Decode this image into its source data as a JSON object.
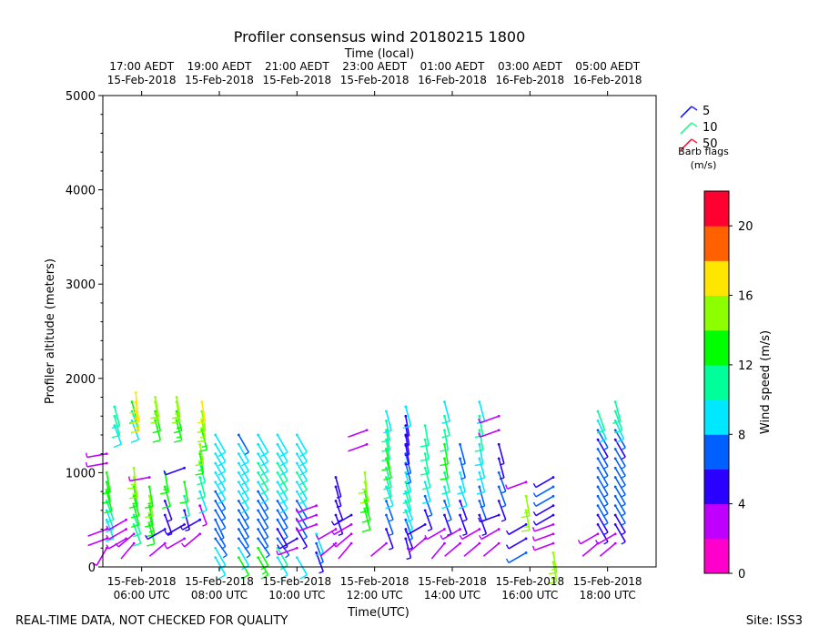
{
  "chart_data": {
    "type": "wind_barb_profile",
    "title": "Profiler consensus wind 20180215 1800",
    "top_axis_label": "Time (local)",
    "xlabel": "Time(UTC)",
    "ylabel": "Profiler altitude (meters)",
    "ylim": [
      0,
      5000
    ],
    "xlim_hours_utc": [
      5.0,
      19.25
    ],
    "y_ticks": [
      "0",
      "1000",
      "2000",
      "3000",
      "4000",
      "5000"
    ],
    "y_tick_values": [
      0,
      1000,
      2000,
      3000,
      4000,
      5000
    ],
    "bottom_ticks": [
      {
        "hour": 6,
        "line1": "15-Feb-2018",
        "line2": "06:00 UTC"
      },
      {
        "hour": 8,
        "line1": "15-Feb-2018",
        "line2": "08:00 UTC"
      },
      {
        "hour": 10,
        "line1": "15-Feb-2018",
        "line2": "10:00 UTC"
      },
      {
        "hour": 12,
        "line1": "15-Feb-2018",
        "line2": "12:00 UTC"
      },
      {
        "hour": 14,
        "line1": "15-Feb-2018",
        "line2": "14:00 UTC"
      },
      {
        "hour": 16,
        "line1": "15-Feb-2018",
        "line2": "16:00 UTC"
      },
      {
        "hour": 18,
        "line1": "15-Feb-2018",
        "line2": "18:00 UTC"
      }
    ],
    "top_ticks": [
      {
        "hour": 6,
        "line1": "17:00 AEDT",
        "line2": "15-Feb-2018"
      },
      {
        "hour": 8,
        "line1": "19:00 AEDT",
        "line2": "15-Feb-2018"
      },
      {
        "hour": 10,
        "line1": "21:00 AEDT",
        "line2": "15-Feb-2018"
      },
      {
        "hour": 12,
        "line1": "23:00 AEDT",
        "line2": "15-Feb-2018"
      },
      {
        "hour": 14,
        "line1": "01:00 AEDT",
        "line2": "16-Feb-2018"
      },
      {
        "hour": 16,
        "line1": "03:00 AEDT",
        "line2": "16-Feb-2018"
      },
      {
        "hour": 18,
        "line1": "05:00 AEDT",
        "line2": "16-Feb-2018"
      }
    ],
    "legend": {
      "title": "Barb flags",
      "units": "(m/s)",
      "entries": [
        {
          "label": "5",
          "color": "#1a1aff"
        },
        {
          "label": "10",
          "color": "#1aff8c"
        },
        {
          "label": "50",
          "color": "#ff1a3c"
        }
      ]
    },
    "colorbar": {
      "label": "Wind speed (m/s)",
      "min": 0,
      "max": 22,
      "ticks": [
        "0",
        "4",
        "8",
        "12",
        "16",
        "20"
      ],
      "tick_values": [
        0,
        4,
        8,
        12,
        16,
        20
      ],
      "colors": [
        "#ff00cc",
        "#c000ff",
        "#2a00ff",
        "#0060ff",
        "#00e8ff",
        "#00ff9a",
        "#00ff00",
        "#8cff00",
        "#ffe600",
        "#ff6000",
        "#ff0030"
      ]
    },
    "profiles": [
      {
        "t": 5.1,
        "alts": [
          200,
          300,
          400,
          500,
          600,
          700,
          800,
          900,
          1000,
          1100,
          1200
        ],
        "spd": [
          3,
          2,
          2,
          9,
          9,
          11,
          12,
          12,
          13,
          3,
          3
        ],
        "dir": [
          210,
          250,
          250,
          160,
          160,
          160,
          165,
          170,
          170,
          260,
          260
        ]
      },
      {
        "t": 5.3,
        "alts": [
          1500,
          1600,
          1700
        ],
        "spd": [
          9,
          10,
          10
        ],
        "dir": [
          160,
          165,
          165
        ]
      },
      {
        "t": 5.6,
        "alts": [
          300,
          400,
          500
        ],
        "spd": [
          3,
          3,
          3
        ],
        "dir": [
          240,
          240,
          240
        ]
      },
      {
        "t": 5.75,
        "alts": [
          1550,
          1650,
          1750
        ],
        "spd": [
          9,
          10,
          12
        ],
        "dir": [
          160,
          160,
          165
        ]
      },
      {
        "t": 5.8,
        "alts": [
          250,
          350,
          450,
          550,
          650,
          750,
          850,
          950,
          1050
        ],
        "spd": [
          2,
          3,
          10,
          11,
          12,
          12,
          13,
          14,
          14
        ],
        "dir": [
          220,
          230,
          160,
          160,
          165,
          165,
          170,
          170,
          175
        ]
      },
      {
        "t": 5.85,
        "alts": [
          1650,
          1750,
          1850
        ],
        "spd": [
          16,
          16,
          17
        ],
        "dir": [
          170,
          170,
          175
        ]
      },
      {
        "t": 6.2,
        "alts": [
          450,
          550,
          650,
          750,
          850,
          950
        ],
        "spd": [
          12,
          13,
          13,
          14,
          13,
          3
        ],
        "dir": [
          165,
          165,
          170,
          170,
          170,
          260
        ]
      },
      {
        "t": 6.35,
        "alts": [
          1550,
          1650,
          1750,
          1800
        ],
        "spd": [
          12,
          12,
          14,
          15
        ],
        "dir": [
          165,
          165,
          170,
          170
        ]
      },
      {
        "t": 6.6,
        "alts": [
          250,
          400,
          550,
          700,
          850,
          1000
        ],
        "spd": [
          2,
          4,
          5,
          4,
          12,
          13
        ],
        "dir": [
          230,
          240,
          160,
          160,
          165,
          170
        ]
      },
      {
        "t": 6.9,
        "alts": [
          1550,
          1650,
          1750,
          1800
        ],
        "spd": [
          13,
          13,
          15,
          15
        ],
        "dir": [
          165,
          165,
          170,
          170
        ]
      },
      {
        "t": 7.1,
        "alts": [
          300,
          450,
          600,
          750,
          900,
          1050
        ],
        "spd": [
          3,
          4,
          5,
          10,
          12,
          5
        ],
        "dir": [
          240,
          240,
          165,
          165,
          170,
          250
        ]
      },
      {
        "t": 7.5,
        "alts": [
          350,
          500,
          650,
          800,
          950,
          1100,
          1200,
          1300
        ],
        "spd": [
          3,
          4,
          3,
          9,
          10,
          11,
          13,
          14
        ],
        "dir": [
          230,
          240,
          160,
          160,
          165,
          165,
          170,
          170
        ]
      },
      {
        "t": 7.55,
        "alts": [
          1450,
          1550,
          1650,
          1750
        ],
        "spd": [
          13,
          14,
          15,
          16
        ],
        "dir": [
          165,
          170,
          170,
          170
        ]
      },
      {
        "t": 7.9,
        "alts": [
          100,
          200,
          300,
          400,
          500,
          600,
          700,
          800,
          900,
          1000,
          1100,
          1200,
          1300,
          1400
        ],
        "spd": [
          9,
          8,
          7,
          7,
          6,
          6,
          6,
          7,
          8,
          9,
          9,
          9,
          9,
          8
        ],
        "dir": [
          150,
          150,
          145,
          150,
          155,
          150,
          150,
          150,
          150,
          150,
          150,
          150,
          150,
          150
        ]
      },
      {
        "t": 8.5,
        "alts": [
          100,
          200,
          300,
          400,
          500,
          600,
          700,
          800,
          900,
          1000,
          1100,
          1200,
          1300,
          1400
        ],
        "spd": [
          12,
          8,
          7,
          7,
          6,
          7,
          7,
          8,
          9,
          9,
          9,
          9,
          8,
          7
        ],
        "dir": [
          150,
          150,
          145,
          150,
          150,
          150,
          150,
          150,
          150,
          150,
          150,
          150,
          150,
          150
        ]
      },
      {
        "t": 9.0,
        "alts": [
          100,
          200,
          300,
          400,
          500,
          600,
          700,
          800,
          900,
          1000,
          1100,
          1200,
          1300,
          1400
        ],
        "spd": [
          13,
          12,
          7,
          7,
          6,
          6,
          6,
          7,
          9,
          11,
          11,
          9,
          9,
          9
        ],
        "dir": [
          150,
          150,
          145,
          150,
          150,
          150,
          150,
          150,
          150,
          150,
          150,
          150,
          150,
          150
        ]
      },
      {
        "t": 9.5,
        "alts": [
          100,
          200,
          300,
          400,
          500,
          600,
          700,
          800,
          900,
          1000,
          1100,
          1200,
          1300,
          1400
        ],
        "spd": [
          9,
          10,
          6,
          5,
          6,
          6,
          7,
          8,
          9,
          10,
          11,
          9,
          9,
          9
        ],
        "dir": [
          150,
          150,
          145,
          150,
          150,
          150,
          150,
          150,
          150,
          150,
          150,
          150,
          150,
          150
        ]
      },
      {
        "t": 10.0,
        "alts": [
          100,
          200,
          300,
          400,
          500,
          600,
          700,
          800,
          900,
          1000,
          1100,
          1200,
          1300,
          1400
        ],
        "spd": [
          9,
          3,
          4,
          5,
          6,
          7,
          7,
          8,
          9,
          10,
          9,
          9,
          9,
          9
        ],
        "dir": [
          150,
          250,
          240,
          150,
          150,
          150,
          150,
          150,
          150,
          150,
          150,
          150,
          150,
          150
        ]
      },
      {
        "t": 10.5,
        "alts": [
          150,
          250,
          350,
          450,
          550,
          650
        ],
        "spd": [
          5,
          7,
          9,
          3,
          3,
          3
        ],
        "dir": [
          160,
          160,
          160,
          250,
          250,
          250
        ]
      },
      {
        "t": 11.0,
        "alts": [
          250,
          400,
          550,
          700,
          850,
          950
        ],
        "spd": [
          2,
          3,
          4,
          5,
          5,
          5
        ],
        "dir": [
          230,
          240,
          160,
          160,
          165,
          165
        ]
      },
      {
        "t": 11.4,
        "alts": [
          250,
          350,
          450,
          550
        ],
        "spd": [
          2,
          3,
          3,
          4
        ],
        "dir": [
          220,
          230,
          240,
          240
        ]
      },
      {
        "t": 11.75,
        "alts": [
          600,
          700,
          800,
          900,
          1000
        ],
        "spd": [
          12,
          12,
          13,
          14,
          14
        ],
        "dir": [
          165,
          165,
          170,
          170,
          175
        ]
      },
      {
        "t": 11.8,
        "alts": [
          1300,
          1450
        ],
        "spd": [
          2,
          2
        ],
        "dir": [
          250,
          250
        ]
      },
      {
        "t": 12.3,
        "alts": [
          250,
          400,
          550,
          700,
          850,
          950,
          1050,
          1150,
          1250,
          1350,
          1450,
          1550,
          1650
        ],
        "spd": [
          2,
          5,
          6,
          7,
          8,
          10,
          11,
          12,
          12,
          11,
          11,
          10,
          9
        ],
        "dir": [
          230,
          160,
          160,
          160,
          160,
          165,
          165,
          165,
          170,
          170,
          170,
          170,
          165
        ]
      },
      {
        "t": 12.8,
        "alts": [
          300,
          400,
          500,
          600,
          700,
          800,
          900,
          1000,
          1100,
          1200,
          1300,
          1400,
          1500,
          1600,
          1700
        ],
        "spd": [
          4,
          5,
          7,
          8,
          9,
          10,
          10,
          9,
          6,
          6,
          5,
          5,
          4,
          4,
          9
        ],
        "dir": [
          165,
          160,
          160,
          160,
          160,
          165,
          165,
          165,
          165,
          165,
          170,
          170,
          170,
          170,
          165
        ]
      },
      {
        "t": 13.3,
        "alts": [
          300,
          450,
          600,
          750,
          900,
          1050,
          1200,
          1350,
          1500
        ],
        "spd": [
          3,
          4,
          5,
          7,
          9,
          10,
          11,
          11,
          10
        ],
        "dir": [
          230,
          240,
          160,
          160,
          165,
          165,
          170,
          170,
          170
        ]
      },
      {
        "t": 13.8,
        "alts": [
          250,
          400,
          550,
          700,
          850,
          1000,
          1150,
          1300,
          1450,
          1600,
          1750
        ],
        "spd": [
          2,
          3,
          5,
          6,
          9,
          11,
          12,
          12,
          11,
          10,
          9
        ],
        "dir": [
          220,
          240,
          160,
          160,
          165,
          165,
          170,
          170,
          170,
          165,
          165
        ]
      },
      {
        "t": 14.2,
        "alts": [
          250,
          400,
          550,
          700,
          850,
          1000,
          1150,
          1300
        ],
        "spd": [
          2,
          3,
          4,
          5,
          8,
          9,
          7,
          6
        ],
        "dir": [
          230,
          240,
          160,
          160,
          160,
          165,
          165,
          165
        ]
      },
      {
        "t": 14.7,
        "alts": [
          250,
          400,
          550,
          700,
          850,
          1000,
          1150,
          1300,
          1450,
          1600,
          1750
        ],
        "spd": [
          2,
          3,
          4,
          6,
          7,
          8,
          9,
          9,
          10,
          10,
          9
        ],
        "dir": [
          230,
          240,
          160,
          160,
          165,
          165,
          165,
          170,
          170,
          170,
          165
        ]
      },
      {
        "t": 15.2,
        "alts": [
          250,
          400,
          550,
          700,
          850,
          1000,
          1150,
          1300,
          1450,
          1600
        ],
        "spd": [
          2,
          3,
          4,
          5,
          6,
          6,
          5,
          4,
          3,
          3
        ],
        "dir": [
          230,
          240,
          250,
          160,
          160,
          160,
          165,
          165,
          250,
          250
        ]
      },
      {
        "t": 15.9,
        "alts": [
          150,
          300,
          450,
          600,
          750,
          900
        ],
        "spd": [
          6,
          5,
          4,
          14,
          14,
          3
        ],
        "dir": [
          240,
          240,
          240,
          170,
          170,
          250
        ]
      },
      {
        "t": 16.6,
        "alts": [
          50,
          150,
          250,
          350,
          450,
          550,
          650,
          750,
          850,
          950
        ],
        "spd": [
          14,
          15,
          3,
          3,
          3,
          4,
          5,
          6,
          6,
          5
        ],
        "dir": [
          170,
          170,
          250,
          250,
          250,
          240,
          240,
          240,
          240,
          240
        ]
      },
      {
        "t": 17.75,
        "alts": [
          250,
          350,
          450,
          550,
          650,
          750,
          850,
          950,
          1050,
          1150,
          1250,
          1350,
          1450,
          1550,
          1650
        ],
        "spd": [
          2,
          3,
          4,
          5,
          6,
          6,
          7,
          7,
          7,
          7,
          6,
          5,
          7,
          9,
          10
        ],
        "dir": [
          230,
          240,
          150,
          150,
          150,
          150,
          150,
          150,
          150,
          150,
          150,
          150,
          150,
          155,
          160
        ]
      },
      {
        "t": 18.2,
        "alts": [
          250,
          350,
          450,
          550,
          650,
          750,
          850,
          950,
          1050,
          1150,
          1250,
          1350,
          1450,
          1550,
          1650,
          1750
        ],
        "spd": [
          2,
          3,
          4,
          5,
          6,
          6,
          7,
          7,
          7,
          7,
          6,
          5,
          6,
          9,
          10,
          11
        ],
        "dir": [
          230,
          240,
          150,
          150,
          150,
          150,
          150,
          150,
          150,
          150,
          150,
          150,
          150,
          155,
          160,
          165
        ]
      }
    ]
  },
  "footer": {
    "left_note": "REAL-TIME DATA, NOT CHECKED FOR QUALITY",
    "site": "Site: ISS3"
  }
}
